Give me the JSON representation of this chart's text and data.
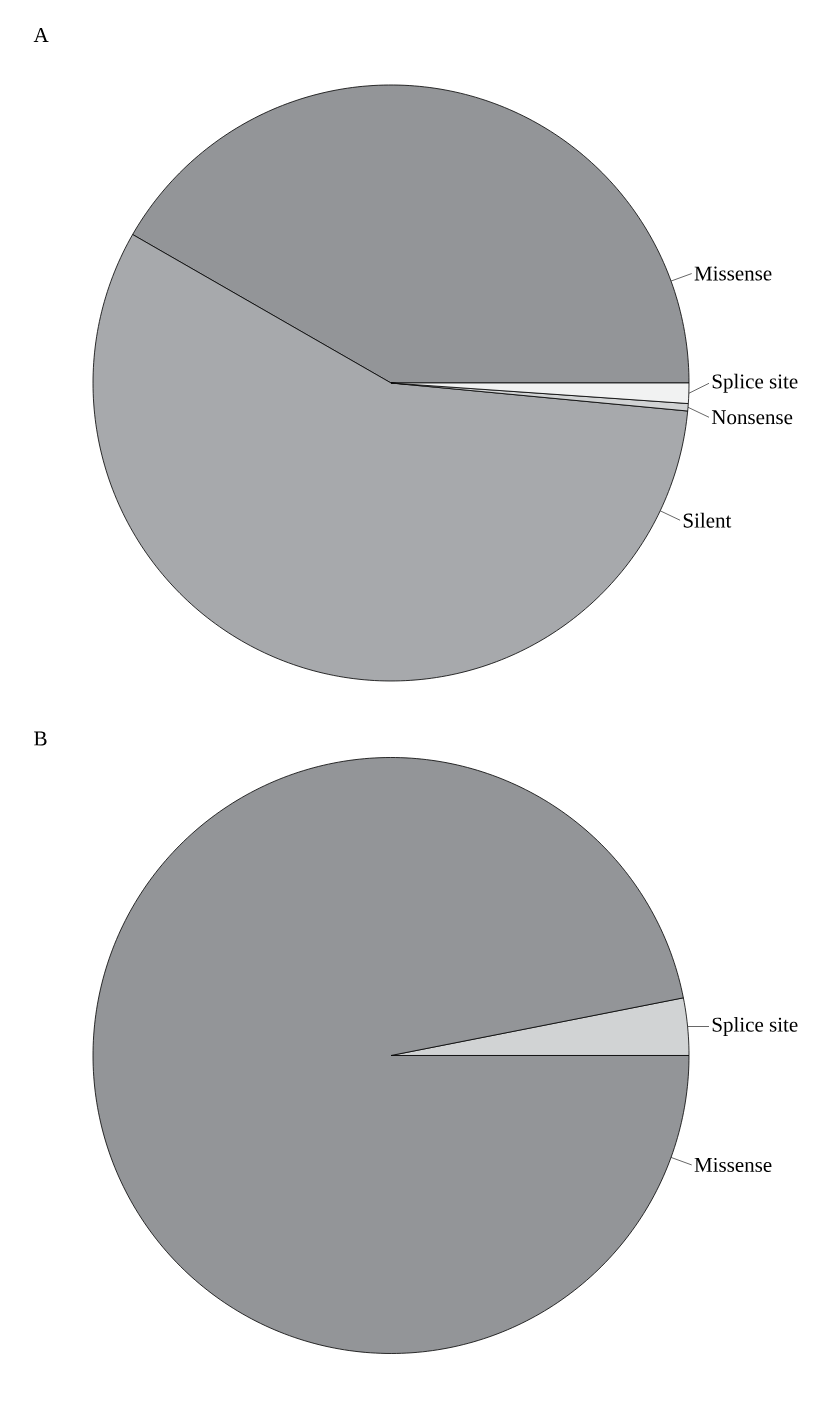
{
  "chart_data": [
    {
      "type": "pie",
      "title": "A",
      "categories": [
        "Missense",
        "Silent",
        "Nonsense",
        "Splice site"
      ],
      "values": [
        41.7,
        56.8,
        0.4,
        1.1
      ],
      "colors": [
        "#939598",
        "#a7a9ac",
        "#d1d3d4",
        "#f1f2f2"
      ]
    },
    {
      "type": "pie",
      "title": "B",
      "categories": [
        "Splice site",
        "Missense"
      ],
      "values": [
        3.1,
        96.9
      ],
      "colors": [
        "#d1d3d4",
        "#939598"
      ]
    }
  ]
}
